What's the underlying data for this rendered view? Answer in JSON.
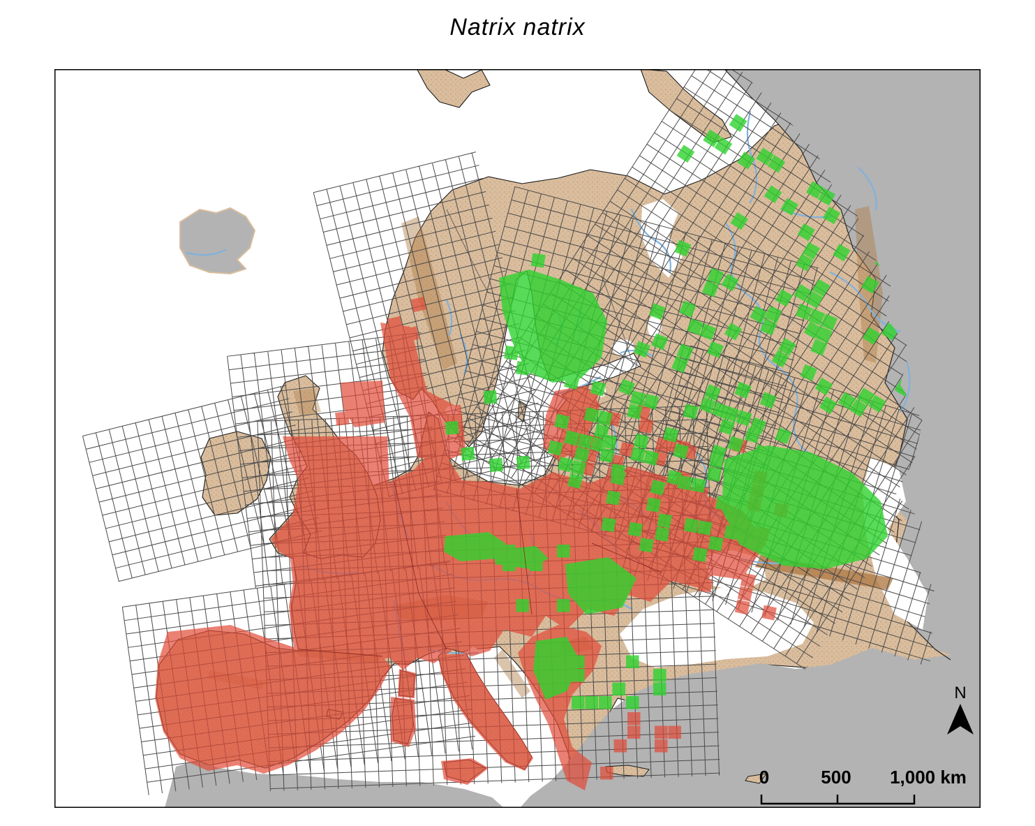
{
  "title": "Natrix natrix",
  "map": {
    "north_label": "N",
    "scalebar": {
      "tick0": "0",
      "tick500": "500",
      "tick1000": "1,000 km"
    }
  },
  "colors": {
    "sea": "#ffffff",
    "outside_area": "#b3b3b3",
    "land": "#d9bd9e",
    "land_speckle": "#c6a173",
    "mountain": "#b07c48",
    "river": "#7fb2de",
    "grid_line": "#4a4a4a",
    "record_red": "#e14b38",
    "record_green": "#2fd32f",
    "coastline": "#1a1a1a",
    "border_east": "#555555",
    "border_red": "#7a1a1a",
    "frame": "#000000"
  }
}
